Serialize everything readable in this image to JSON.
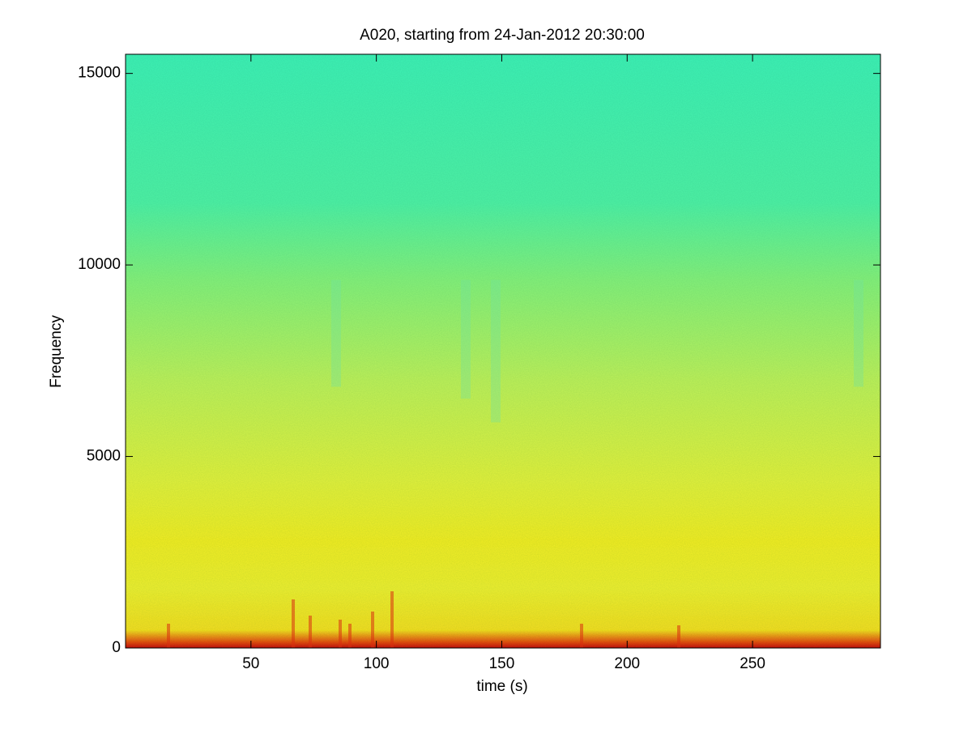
{
  "chart_data": {
    "type": "spectrogram",
    "title": "A020, starting from 24-Jan-2012 20:30:00",
    "x_label": "time (s)",
    "y_label": "Frequency",
    "xlim": [
      0,
      301
    ],
    "ylim": [
      0,
      15500
    ],
    "xticks": [
      50,
      100,
      150,
      200,
      250
    ],
    "yticks": [
      0,
      5000,
      10000,
      15000
    ]
  }
}
